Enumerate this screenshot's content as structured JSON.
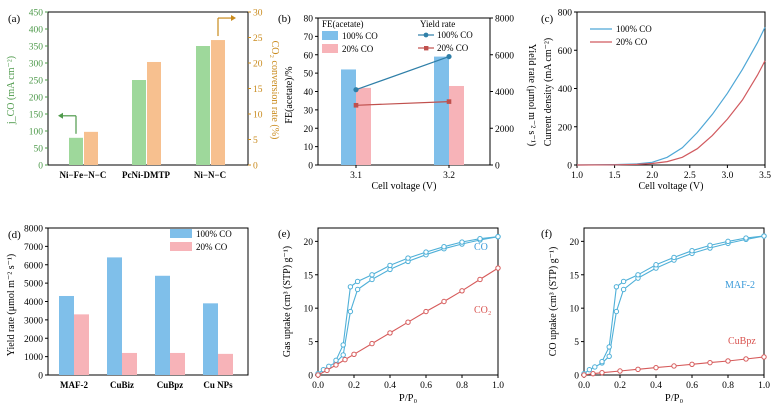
{
  "colors": {
    "green_bar": "#9ed89b",
    "orange_bar": "#f7c08f",
    "blue_bar": "#7fbfea",
    "pink_bar": "#f7b3b8",
    "blue_line": "#2f7fa8",
    "red_line": "#c0504d",
    "green_axis": "#4e9a4b",
    "orange_axis": "#c98a1c",
    "cyan_label": "#3a9ad9",
    "red_label": "#d9534f"
  },
  "chart_data": [
    {
      "id": "a",
      "panel_label": "(a)",
      "type": "bar",
      "categories": [
        "Ni−Fe−N−C",
        "PcNi-DMTP",
        "Ni−N−C"
      ],
      "series": [
        {
          "name": "j_CO",
          "axis": "left",
          "values": [
            80,
            250,
            350
          ]
        },
        {
          "name": "CO2 conversion rate",
          "axis": "right",
          "values": [
            6.5,
            20.2,
            24.5
          ]
        }
      ],
      "ylabel_left": "j_CO (mA cm⁻²)",
      "ylabel_right": "CO₂ conversion rate (%)",
      "ylim_left": [
        0,
        450
      ],
      "yticks_left": [
        0,
        50,
        100,
        150,
        200,
        250,
        300,
        350,
        400,
        450
      ],
      "ylim_right": [
        0,
        30
      ],
      "yticks_right": [
        0,
        5,
        10,
        15,
        20,
        25,
        30
      ]
    },
    {
      "id": "b",
      "panel_label": "(b)",
      "type": "bar+line",
      "categories": [
        "3.1",
        "3.2"
      ],
      "bar_series": [
        {
          "name": "100% CO",
          "values": [
            52,
            59
          ]
        },
        {
          "name": "20% CO",
          "values": [
            42,
            43
          ]
        }
      ],
      "line_series": [
        {
          "name": "100% CO",
          "values": [
            4100,
            5900
          ]
        },
        {
          "name": "20% CO",
          "values": [
            3250,
            3450
          ]
        }
      ],
      "legend_bar_title": "FE(acetate)",
      "legend_line_title": "Yield rate",
      "xlabel": "Cell voltage (V)",
      "ylabel_left": "FE(acetate)/%",
      "ylabel_right": "Yield rate (μmol m⁻² s⁻¹)",
      "ylim_left": [
        0,
        80
      ],
      "yticks_left": [
        0,
        10,
        20,
        30,
        40,
        50,
        60,
        70,
        80
      ],
      "ylim_right": [
        0,
        8000
      ],
      "yticks_right": [
        0,
        2000,
        4000,
        6000,
        8000
      ]
    },
    {
      "id": "c",
      "panel_label": "(c)",
      "type": "line",
      "series": [
        {
          "name": "100% CO",
          "x": [
            1.0,
            1.5,
            1.8,
            2.0,
            2.2,
            2.4,
            2.6,
            2.8,
            3.0,
            3.2,
            3.4,
            3.5
          ],
          "y": [
            0,
            2,
            6,
            14,
            40,
            90,
            170,
            265,
            375,
            500,
            640,
            720
          ]
        },
        {
          "name": "20% CO",
          "x": [
            1.0,
            1.5,
            1.8,
            2.0,
            2.2,
            2.4,
            2.6,
            2.8,
            3.0,
            3.2,
            3.4,
            3.5
          ],
          "y": [
            0,
            1,
            3,
            8,
            18,
            40,
            85,
            155,
            240,
            340,
            470,
            545
          ]
        }
      ],
      "xlabel": "Cell voltage (V)",
      "ylabel": "Current density (mA cm⁻²)",
      "xlim": [
        1.0,
        3.5
      ],
      "xticks": [
        1.0,
        1.5,
        2.0,
        2.5,
        3.0,
        3.5
      ],
      "ylim": [
        0,
        800
      ],
      "yticks": [
        0,
        200,
        400,
        600,
        800
      ]
    },
    {
      "id": "d",
      "panel_label": "(d)",
      "type": "bar",
      "categories": [
        "MAF-2",
        "CuBiz",
        "CuBpz",
        "Cu NPs"
      ],
      "series": [
        {
          "name": "100% CO",
          "values": [
            4300,
            6400,
            5400,
            3900
          ]
        },
        {
          "name": "20% CO",
          "values": [
            3300,
            1200,
            1200,
            1150
          ]
        }
      ],
      "ylabel": "Yield rate (μmol m⁻² s⁻¹)",
      "ylim": [
        0,
        8000
      ],
      "yticks": [
        0,
        1000,
        2000,
        3000,
        4000,
        5000,
        6000,
        7000,
        8000
      ]
    },
    {
      "id": "e",
      "panel_label": "(e)",
      "type": "scatter-line",
      "series": [
        {
          "name": "CO",
          "x": [
            0.0,
            0.03,
            0.06,
            0.1,
            0.14,
            0.18,
            0.22,
            0.3,
            0.4,
            0.5,
            0.6,
            0.7,
            0.8,
            0.9,
            1.0
          ],
          "y": [
            0.2,
            0.8,
            1.3,
            1.9,
            3.0,
            9.5,
            12.8,
            14.3,
            15.8,
            17.0,
            18.0,
            18.9,
            19.6,
            20.2,
            20.7
          ]
        },
        {
          "name": "CO desorption",
          "x": [
            1.0,
            0.9,
            0.8,
            0.7,
            0.6,
            0.5,
            0.4,
            0.3,
            0.22,
            0.18,
            0.14,
            0.1
          ],
          "y": [
            20.7,
            20.4,
            19.9,
            19.2,
            18.4,
            17.5,
            16.4,
            15.0,
            14.0,
            13.2,
            4.5,
            2.2
          ]
        },
        {
          "name": "CO₂",
          "x": [
            0.0,
            0.05,
            0.1,
            0.15,
            0.2,
            0.3,
            0.4,
            0.5,
            0.6,
            0.7,
            0.8,
            0.9,
            1.0
          ],
          "y": [
            0.0,
            0.7,
            1.5,
            2.3,
            3.1,
            4.7,
            6.3,
            7.9,
            9.5,
            11.0,
            12.6,
            14.3,
            16.0
          ]
        }
      ],
      "series_labels": [
        "CO",
        "CO₂"
      ],
      "xlabel": "P/P₀",
      "ylabel": "Gas uptake (cm³ (STP) g⁻¹)",
      "xlim": [
        0,
        1.0
      ],
      "xticks": [
        0.0,
        0.2,
        0.4,
        0.6,
        0.8,
        1.0
      ],
      "ylim": [
        0,
        22
      ],
      "yticks": [
        0,
        5,
        10,
        15,
        20
      ]
    },
    {
      "id": "f",
      "panel_label": "(f)",
      "type": "scatter-line",
      "series": [
        {
          "name": "MAF-2",
          "x": [
            0.0,
            0.03,
            0.06,
            0.1,
            0.14,
            0.18,
            0.22,
            0.3,
            0.4,
            0.5,
            0.6,
            0.7,
            0.8,
            0.9,
            1.0
          ],
          "y": [
            0.2,
            0.8,
            1.2,
            1.8,
            2.8,
            9.5,
            12.8,
            14.5,
            16.0,
            17.2,
            18.2,
            19.0,
            19.7,
            20.3,
            20.8
          ]
        },
        {
          "name": "MAF-2 desorption",
          "x": [
            1.0,
            0.9,
            0.8,
            0.7,
            0.6,
            0.5,
            0.4,
            0.3,
            0.22,
            0.18,
            0.14,
            0.1
          ],
          "y": [
            20.8,
            20.5,
            20.0,
            19.4,
            18.6,
            17.6,
            16.5,
            15.0,
            14.0,
            13.2,
            4.2,
            2.0
          ]
        },
        {
          "name": "CuBpz",
          "x": [
            0.0,
            0.05,
            0.1,
            0.2,
            0.3,
            0.4,
            0.5,
            0.6,
            0.7,
            0.8,
            0.9,
            1.0
          ],
          "y": [
            0.0,
            0.2,
            0.35,
            0.6,
            0.85,
            1.1,
            1.35,
            1.6,
            1.85,
            2.1,
            2.4,
            2.7
          ]
        }
      ],
      "series_labels": [
        "MAF-2",
        "CuBpz"
      ],
      "xlabel": "P/P₀",
      "ylabel": "CO uptake (cm³ (STP) g⁻¹)",
      "xlim": [
        0,
        1.0
      ],
      "xticks": [
        0.0,
        0.2,
        0.4,
        0.6,
        0.8,
        1.0
      ],
      "ylim": [
        0,
        22
      ],
      "yticks": [
        0,
        5,
        10,
        15,
        20
      ]
    }
  ]
}
